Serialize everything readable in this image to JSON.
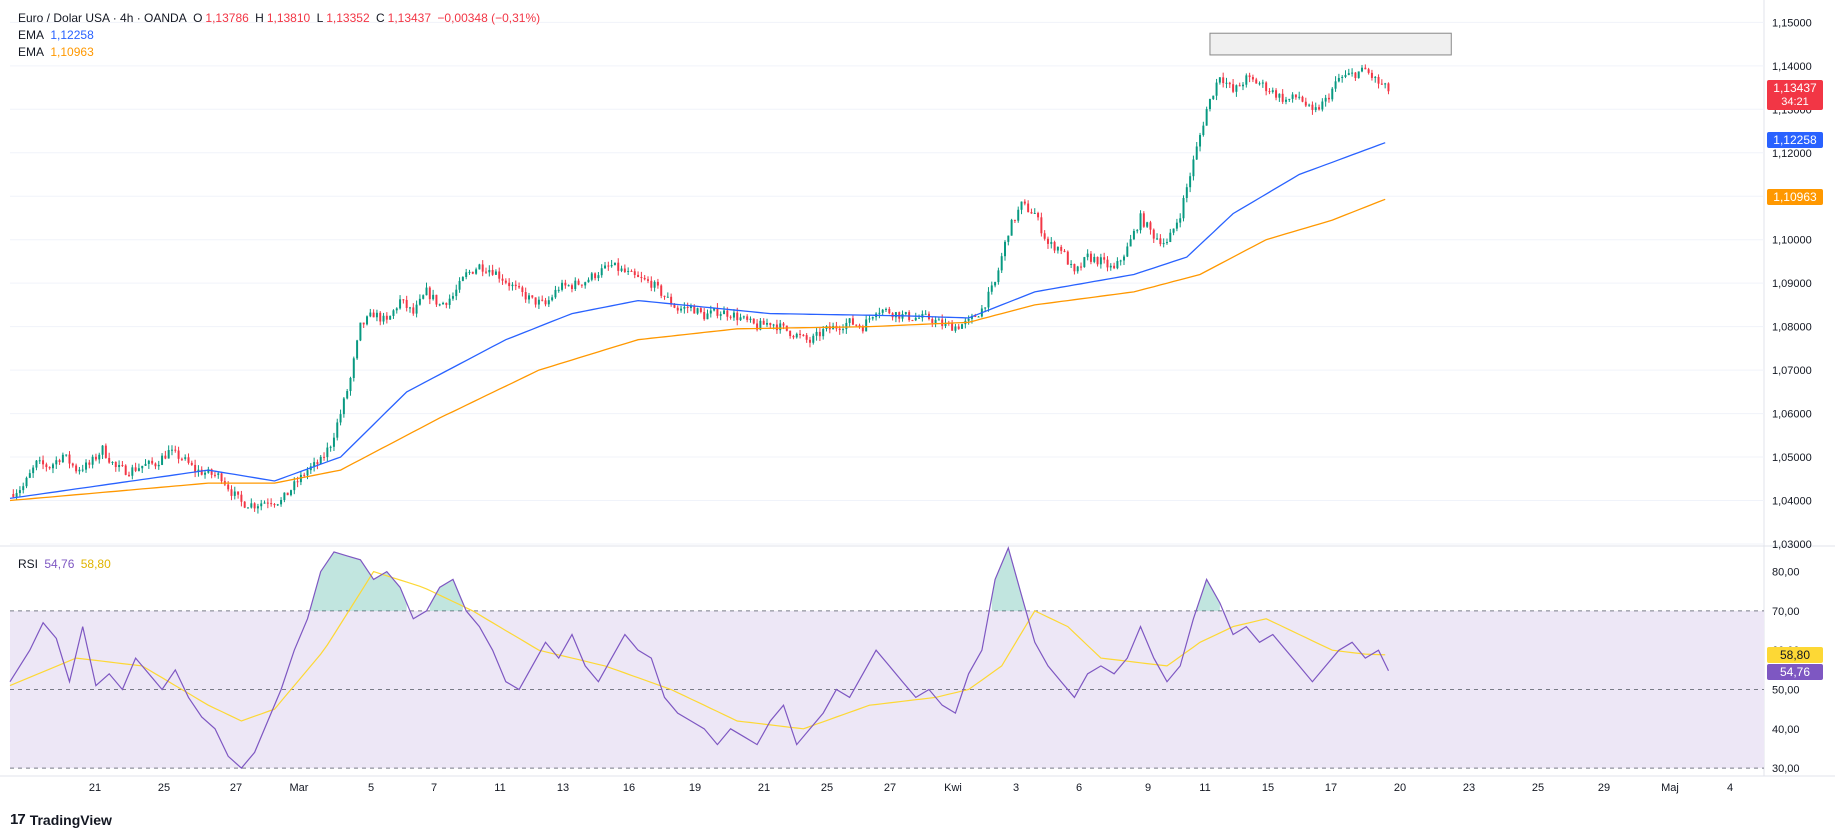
{
  "header": {
    "symbol": "Euro / Dolar USA · 4h · OANDA",
    "open_label": "O",
    "open": "1,13786",
    "high_label": "H",
    "high": "1,13810",
    "low_label": "L",
    "low": "1,13352",
    "close_label": "C",
    "close": "1,13437",
    "change": "−0,00348 (−0,31%)",
    "ema1_label": "EMA",
    "ema1_value": "1,12258",
    "ema2_label": "EMA",
    "ema2_value": "1,10963"
  },
  "rsi_legend": {
    "label": "RSI",
    "rsi_value": "54,76",
    "ma_value": "58,80"
  },
  "price_tags": {
    "last_price": "1,13437",
    "countdown": "34:21",
    "ema1": "1,12258",
    "ema2": "1,10963",
    "rsi": "54,76",
    "rsi_ma": "58,80"
  },
  "footer": {
    "brand": "TradingView"
  },
  "colors": {
    "up": "#089981",
    "down": "#f23645",
    "ema1": "#2962ff",
    "ema2": "#ff9800",
    "rsi": "#7e57c2",
    "rsi_ma": "#fdd835",
    "rsi_band": "#ede7f6",
    "grid": "#f0f3fa"
  },
  "chart_data": [
    {
      "type": "candlestick",
      "title": "Euro / Dolar USA · 4h · OANDA",
      "y_ticks": [
        "1,03000",
        "1,04000",
        "1,05000",
        "1,06000",
        "1,07000",
        "1,08000",
        "1,09000",
        "1,10000",
        "1,11000",
        "1,12000",
        "1,13000",
        "1,14000",
        "1,15000"
      ],
      "ylim": [
        1.03,
        1.151
      ],
      "x_ticks": [
        "21",
        "25",
        "27",
        "Mar",
        "5",
        "7",
        "11",
        "13",
        "16",
        "19",
        "21",
        "25",
        "27",
        "Kwi",
        "3",
        "6",
        "9",
        "11",
        "15",
        "17",
        "20",
        "23",
        "25",
        "29",
        "Maj",
        "4"
      ],
      "close_path": [
        [
          0,
          1.0415
        ],
        [
          4,
          1.0432
        ],
        [
          8,
          1.0485
        ],
        [
          12,
          1.0478
        ],
        [
          16,
          1.0505
        ],
        [
          20,
          1.0472
        ],
        [
          24,
          1.0482
        ],
        [
          28,
          1.0518
        ],
        [
          32,
          1.0475
        ],
        [
          36,
          1.0468
        ],
        [
          40,
          1.048
        ],
        [
          44,
          1.0485
        ],
        [
          48,
          1.0512
        ],
        [
          52,
          1.0498
        ],
        [
          56,
          1.047
        ],
        [
          60,
          1.0462
        ],
        [
          64,
          1.0455
        ],
        [
          67,
          1.042
        ],
        [
          70,
          1.0395
        ],
        [
          74,
          1.039
        ],
        [
          78,
          1.04
        ],
        [
          82,
          1.0398
        ],
        [
          86,
          1.0435
        ],
        [
          90,
          1.047
        ],
        [
          94,
          1.049
        ],
        [
          97,
          1.053
        ],
        [
          100,
          1.06
        ],
        [
          103,
          1.068
        ],
        [
          106,
          1.08
        ],
        [
          110,
          1.083
        ],
        [
          114,
          1.081
        ],
        [
          118,
          1.086
        ],
        [
          122,
          1.083
        ],
        [
          126,
          1.088
        ],
        [
          130,
          1.085
        ],
        [
          134,
          1.087
        ],
        [
          138,
          1.092
        ],
        [
          142,
          1.094
        ],
        [
          146,
          1.093
        ],
        [
          150,
          1.0905
        ],
        [
          154,
          1.088
        ],
        [
          158,
          1.086
        ],
        [
          162,
          1.085
        ],
        [
          166,
          1.089
        ],
        [
          170,
          1.0895
        ],
        [
          174,
          1.0905
        ],
        [
          178,
          1.0925
        ],
        [
          182,
          1.094
        ],
        [
          186,
          1.0925
        ],
        [
          190,
          1.091
        ],
        [
          194,
          1.09
        ],
        [
          198,
          1.087
        ],
        [
          202,
          1.084
        ],
        [
          206,
          1.0845
        ],
        [
          210,
          1.0825
        ],
        [
          214,
          1.0835
        ],
        [
          218,
          1.083
        ],
        [
          222,
          1.0815
        ],
        [
          226,
          1.08
        ],
        [
          230,
          1.081
        ],
        [
          234,
          1.0795
        ],
        [
          238,
          1.078
        ],
        [
          242,
          1.0765
        ],
        [
          246,
          1.079
        ],
        [
          250,
          1.08
        ],
        [
          254,
          1.081
        ],
        [
          258,
          1.08
        ],
        [
          262,
          1.084
        ],
        [
          266,
          1.0835
        ],
        [
          270,
          1.0825
        ],
        [
          274,
          1.082
        ],
        [
          278,
          1.082
        ],
        [
          282,
          1.0805
        ],
        [
          286,
          1.08
        ],
        [
          290,
          1.081
        ],
        [
          294,
          1.084
        ],
        [
          298,
          1.09
        ],
        [
          302,
          1.102
        ],
        [
          306,
          1.108
        ],
        [
          310,
          1.106
        ],
        [
          314,
          1.099
        ],
        [
          318,
          1.098
        ],
        [
          322,
          1.092
        ],
        [
          326,
          1.096
        ],
        [
          330,
          1.095
        ],
        [
          334,
          1.093
        ],
        [
          338,
          1.098
        ],
        [
          342,
          1.105
        ],
        [
          346,
          1.101
        ],
        [
          350,
          1.099
        ],
        [
          354,
          1.106
        ],
        [
          358,
          1.118
        ],
        [
          362,
          1.13
        ],
        [
          366,
          1.138
        ],
        [
          370,
          1.134
        ],
        [
          374,
          1.137
        ],
        [
          378,
          1.136
        ],
        [
          382,
          1.134
        ],
        [
          386,
          1.132
        ],
        [
          390,
          1.133
        ],
        [
          394,
          1.129
        ],
        [
          398,
          1.132
        ],
        [
          402,
          1.137
        ],
        [
          406,
          1.138
        ],
        [
          410,
          1.139
        ],
        [
          414,
          1.136
        ],
        [
          417,
          1.1344
        ]
      ],
      "series": [
        {
          "name": "EMA",
          "value": "1,12258",
          "values": [
            [
              0,
              1.0405
            ],
            [
              60,
              1.047
            ],
            [
              80,
              1.0445
            ],
            [
              100,
              1.05
            ],
            [
              120,
              1.065
            ],
            [
              150,
              1.077
            ],
            [
              170,
              1.083
            ],
            [
              190,
              1.086
            ],
            [
              230,
              1.083
            ],
            [
              270,
              1.0825
            ],
            [
              290,
              1.082
            ],
            [
              310,
              1.088
            ],
            [
              340,
              1.092
            ],
            [
              356,
              1.096
            ],
            [
              370,
              1.106
            ],
            [
              390,
              1.115
            ],
            [
              417,
              1.1226
            ]
          ]
        },
        {
          "name": "EMA",
          "value": "1,10963",
          "values": [
            [
              0,
              1.04
            ],
            [
              60,
              1.044
            ],
            [
              80,
              1.044
            ],
            [
              100,
              1.047
            ],
            [
              130,
              1.059
            ],
            [
              160,
              1.07
            ],
            [
              190,
              1.077
            ],
            [
              220,
              1.0795
            ],
            [
              260,
              1.08
            ],
            [
              290,
              1.081
            ],
            [
              310,
              1.085
            ],
            [
              340,
              1.088
            ],
            [
              360,
              1.092
            ],
            [
              380,
              1.1
            ],
            [
              400,
              1.1045
            ],
            [
              417,
              1.1096
            ]
          ]
        }
      ],
      "supply_zone": {
        "from": [
          1.1425,
          1.1475
        ]
      }
    },
    {
      "type": "line",
      "title": "RSI",
      "y_ticks": [
        "30,00",
        "40,00",
        "50,00",
        "60,00",
        "70,00",
        "80,00"
      ],
      "ylim": [
        28,
        86
      ],
      "levels": [
        30,
        50,
        70
      ],
      "series": [
        {
          "name": "RSI",
          "value": "54,76",
          "values": [
            [
              0,
              52
            ],
            [
              6,
              60
            ],
            [
              10,
              67
            ],
            [
              14,
              63
            ],
            [
              18,
              52
            ],
            [
              22,
              66
            ],
            [
              26,
              51
            ],
            [
              30,
              54
            ],
            [
              34,
              50
            ],
            [
              38,
              58
            ],
            [
              42,
              54
            ],
            [
              46,
              50
            ],
            [
              50,
              55
            ],
            [
              54,
              48
            ],
            [
              58,
              43
            ],
            [
              62,
              40
            ],
            [
              66,
              33
            ],
            [
              70,
              30
            ],
            [
              74,
              34
            ],
            [
              78,
              42
            ],
            [
              82,
              50
            ],
            [
              86,
              60
            ],
            [
              90,
              68
            ],
            [
              94,
              80
            ],
            [
              98,
              85
            ],
            [
              102,
              84
            ],
            [
              106,
              83
            ],
            [
              110,
              78
            ],
            [
              114,
              80
            ],
            [
              118,
              76
            ],
            [
              122,
              68
            ],
            [
              126,
              70
            ],
            [
              130,
              76
            ],
            [
              134,
              78
            ],
            [
              138,
              70
            ],
            [
              142,
              66
            ],
            [
              146,
              60
            ],
            [
              150,
              52
            ],
            [
              154,
              50
            ],
            [
              158,
              56
            ],
            [
              162,
              62
            ],
            [
              166,
              58
            ],
            [
              170,
              64
            ],
            [
              174,
              56
            ],
            [
              178,
              52
            ],
            [
              182,
              58
            ],
            [
              186,
              64
            ],
            [
              190,
              60
            ],
            [
              194,
              58
            ],
            [
              198,
              48
            ],
            [
              202,
              44
            ],
            [
              206,
              42
            ],
            [
              210,
              40
            ],
            [
              214,
              36
            ],
            [
              218,
              40
            ],
            [
              222,
              38
            ],
            [
              226,
              36
            ],
            [
              230,
              42
            ],
            [
              234,
              46
            ],
            [
              238,
              36
            ],
            [
              242,
              40
            ],
            [
              246,
              44
            ],
            [
              250,
              50
            ],
            [
              254,
              48
            ],
            [
              258,
              54
            ],
            [
              262,
              60
            ],
            [
              266,
              56
            ],
            [
              270,
              52
            ],
            [
              274,
              48
            ],
            [
              278,
              50
            ],
            [
              282,
              46
            ],
            [
              286,
              44
            ],
            [
              290,
              54
            ],
            [
              294,
              60
            ],
            [
              298,
              78
            ],
            [
              302,
              86
            ],
            [
              306,
              74
            ],
            [
              310,
              62
            ],
            [
              314,
              56
            ],
            [
              318,
              52
            ],
            [
              322,
              48
            ],
            [
              326,
              54
            ],
            [
              330,
              56
            ],
            [
              334,
              54
            ],
            [
              338,
              58
            ],
            [
              342,
              66
            ],
            [
              346,
              58
            ],
            [
              350,
              52
            ],
            [
              354,
              56
            ],
            [
              358,
              68
            ],
            [
              362,
              78
            ],
            [
              366,
              72
            ],
            [
              370,
              64
            ],
            [
              374,
              66
            ],
            [
              378,
              62
            ],
            [
              382,
              64
            ],
            [
              386,
              60
            ],
            [
              390,
              56
            ],
            [
              394,
              52
            ],
            [
              398,
              56
            ],
            [
              402,
              60
            ],
            [
              406,
              62
            ],
            [
              410,
              58
            ],
            [
              414,
              60
            ],
            [
              417,
              54.76
            ]
          ]
        },
        {
          "name": "MA",
          "value": "58,80",
          "values": [
            [
              0,
              51
            ],
            [
              20,
              58
            ],
            [
              40,
              56
            ],
            [
              60,
              46
            ],
            [
              70,
              42
            ],
            [
              80,
              45
            ],
            [
              95,
              60
            ],
            [
              110,
              80
            ],
            [
              125,
              76
            ],
            [
              140,
              70
            ],
            [
              160,
              60
            ],
            [
              180,
              56
            ],
            [
              200,
              50
            ],
            [
              220,
              42
            ],
            [
              240,
              40
            ],
            [
              260,
              46
            ],
            [
              280,
              48
            ],
            [
              290,
              50
            ],
            [
              300,
              56
            ],
            [
              310,
              70
            ],
            [
              320,
              66
            ],
            [
              330,
              58
            ],
            [
              350,
              56
            ],
            [
              360,
              62
            ],
            [
              370,
              66
            ],
            [
              380,
              68
            ],
            [
              390,
              64
            ],
            [
              400,
              60
            ],
            [
              410,
              59
            ],
            [
              417,
              58.8
            ]
          ]
        }
      ]
    }
  ]
}
